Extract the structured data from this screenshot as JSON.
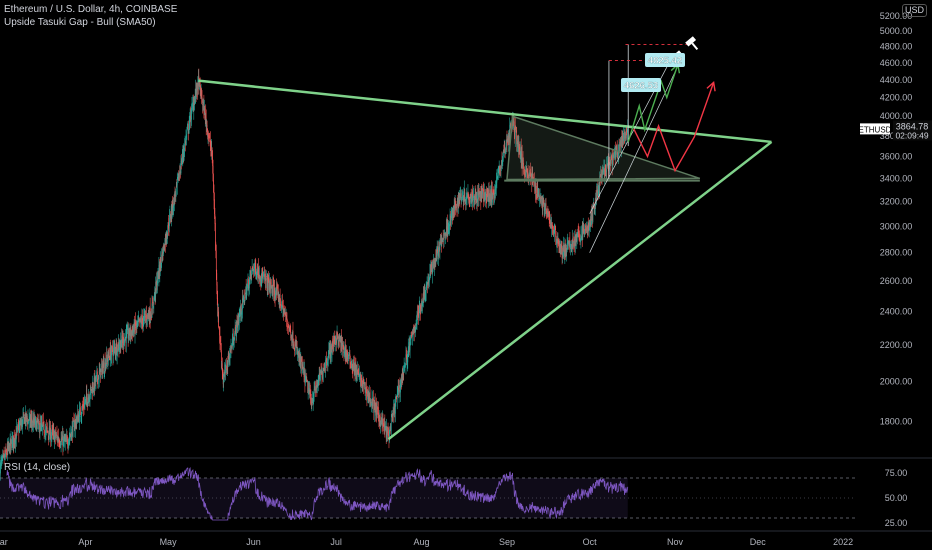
{
  "header": {
    "title": "Ethereum / U.S. Dollar, 4h, COINBASE",
    "indicator": "Upside Tasuki Gap - Bull (SMA50)",
    "currency": "USD",
    "rsi_label": "RSI (14, close)"
  },
  "price_tag": {
    "symbol": "ETHUSD",
    "price": "3864.78",
    "countdown": "02:09:49"
  },
  "callouts": [
    "4825.42",
    "4626.53"
  ],
  "colors": {
    "background": "#000000",
    "up": "#26a69a",
    "down": "#ef5350",
    "trendline": "#7fd28a",
    "rsi": "#7e57c2",
    "callout": "#b2ebf2",
    "projection_green": "#4caf50",
    "projection_red": "#f23645"
  },
  "chart_data": [
    {
      "type": "candlestick",
      "symbol": "ETHUSD",
      "timeframe": "4h",
      "y_ticks": [
        "1800.00",
        "2000.00",
        "2200.00",
        "2400.00",
        "2600.00",
        "2800.00",
        "3000.00",
        "3200.00",
        "3400.00",
        "3600.00",
        "3800.00",
        "4000.00",
        "4200.00",
        "4400.00",
        "4600.00",
        "4800.00",
        "5000.00",
        "5200.00"
      ],
      "ylim": [
        1650,
        5420
      ],
      "x_ticks": [
        "Mar",
        "Apr",
        "May",
        "Jun",
        "Jul",
        "Aug",
        "Sep",
        "Oct",
        "Nov",
        "Dec",
        "2022"
      ],
      "x_tick_dates": [
        "2021-03-01",
        "2021-04-01",
        "2021-05-01",
        "2021-06-01",
        "2021-07-01",
        "2021-08-01",
        "2021-09-01",
        "2021-10-01",
        "2021-11-01",
        "2021-12-01",
        "2022-01-01"
      ],
      "xlim": [
        "2021-03-01",
        "2022-01-22"
      ],
      "path_anchors": [
        {
          "date": "2021-03-01",
          "price": 1600
        },
        {
          "date": "2021-03-10",
          "price": 1820
        },
        {
          "date": "2021-03-25",
          "price": 1700
        },
        {
          "date": "2021-04-10",
          "price": 2150
        },
        {
          "date": "2021-04-25",
          "price": 2400
        },
        {
          "date": "2021-05-04",
          "price": 3300
        },
        {
          "date": "2021-05-12",
          "price": 4380
        },
        {
          "date": "2021-05-17",
          "price": 3600
        },
        {
          "date": "2021-05-19",
          "price": 2400
        },
        {
          "date": "2021-05-21",
          "price": 2000
        },
        {
          "date": "2021-06-01",
          "price": 2700
        },
        {
          "date": "2021-06-10",
          "price": 2500
        },
        {
          "date": "2021-06-22",
          "price": 1900
        },
        {
          "date": "2021-07-01",
          "price": 2250
        },
        {
          "date": "2021-07-20",
          "price": 1730
        },
        {
          "date": "2021-08-05",
          "price": 2700
        },
        {
          "date": "2021-08-15",
          "price": 3250
        },
        {
          "date": "2021-08-27",
          "price": 3250
        },
        {
          "date": "2021-09-03",
          "price": 3950
        },
        {
          "date": "2021-09-07",
          "price": 3500
        },
        {
          "date": "2021-09-10",
          "price": 3400
        },
        {
          "date": "2021-09-21",
          "price": 2800
        },
        {
          "date": "2021-10-01",
          "price": 3000
        },
        {
          "date": "2021-10-05",
          "price": 3400
        },
        {
          "date": "2021-10-10",
          "price": 3600
        },
        {
          "date": "2021-10-15",
          "price": 3860
        }
      ],
      "price_label": "3864.78",
      "horizontal_level": 3380
    },
    {
      "type": "line",
      "title": "RSI (14, close)",
      "y_ticks": [
        "25.00",
        "50.00",
        "75.00"
      ],
      "ylim": [
        20,
        85
      ],
      "levels": [
        30,
        70
      ],
      "rsi_range": [
        28,
        80
      ]
    }
  ],
  "drawings": {
    "upper_trendline": [
      {
        "date": "2021-05-12",
        "price": 4390
      },
      {
        "date": "2021-12-06",
        "price": 3740
      }
    ],
    "lower_trendline": [
      {
        "date": "2021-07-20",
        "price": 1720
      },
      {
        "date": "2021-12-06",
        "price": 3740
      }
    ],
    "inner_triangle": [
      {
        "date": "2021-09-03",
        "price": 4000
      },
      {
        "date": "2021-11-10",
        "price": 3400
      },
      {
        "date": "2021-09-01",
        "price": 3390
      }
    ],
    "rays": [
      [
        {
          "date": "2021-10-01",
          "price": 2800
        },
        {
          "date": "2021-11-03",
          "price": 4630
        }
      ],
      [
        {
          "date": "2021-10-01",
          "price": 3100
        },
        {
          "date": "2021-10-30",
          "price": 4610
        }
      ]
    ],
    "green_path": [
      {
        "date": "2021-10-15",
        "price": 3740
      },
      {
        "date": "2021-10-19",
        "price": 4110
      },
      {
        "date": "2021-10-21",
        "price": 3860
      },
      {
        "date": "2021-10-27",
        "price": 4380
      },
      {
        "date": "2021-10-29",
        "price": 4200
      },
      {
        "date": "2021-11-02",
        "price": 4580
      }
    ],
    "red_path": [
      {
        "date": "2021-10-17",
        "price": 3870
      },
      {
        "date": "2021-10-22",
        "price": 3600
      },
      {
        "date": "2021-10-26",
        "price": 3900
      },
      {
        "date": "2021-11-01",
        "price": 3470
      },
      {
        "date": "2021-11-08",
        "price": 3790
      },
      {
        "date": "2021-11-15",
        "price": 4370
      }
    ],
    "callout_levels": [
      4825,
      4626
    ]
  }
}
